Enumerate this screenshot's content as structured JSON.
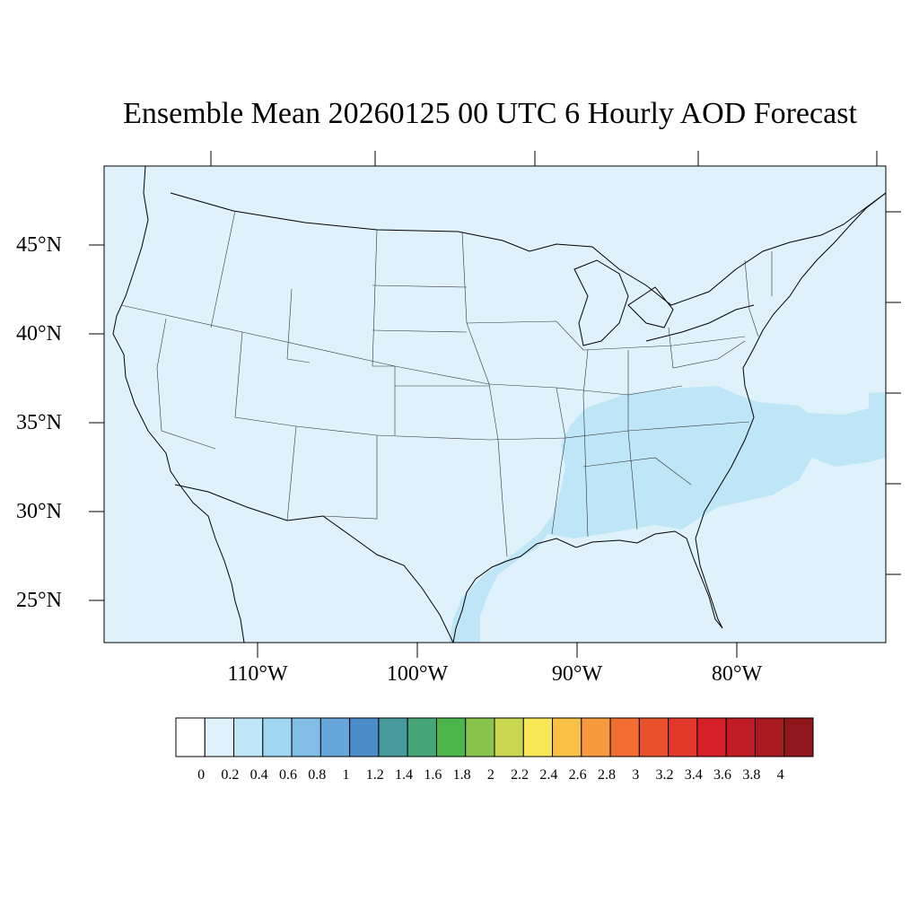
{
  "title": "Ensemble Mean 20260125 00 UTC 6 Hourly AOD Forecast",
  "lat_labels": [
    "45°N",
    "40°N",
    "35°N",
    "30°N",
    "25°N"
  ],
  "lon_labels": [
    "110°W",
    "100°W",
    "90°W",
    "80°W"
  ],
  "colorbar": {
    "levels": [
      "0",
      "0.2",
      "0.4",
      "0.6",
      "0.8",
      "1",
      "1.2",
      "1.4",
      "1.6",
      "1.8",
      "2",
      "2.2",
      "2.4",
      "2.6",
      "2.8",
      "3",
      "3.2",
      "3.4",
      "3.6",
      "3.8",
      "4"
    ],
    "colors": [
      "#ffffff",
      "#dff2fb",
      "#bfe6f7",
      "#9fd6f2",
      "#80bee6",
      "#66a6da",
      "#4a8bc8",
      "#48999b",
      "#46a678",
      "#4bb54b",
      "#88c44c",
      "#c8d650",
      "#f8e755",
      "#f8c044",
      "#f69a3d",
      "#f26d31",
      "#e9512d",
      "#e1382a",
      "#d52028",
      "#c11c26",
      "#a91a20",
      "#8f161b"
    ]
  },
  "field": {
    "background_value": "0–0.2",
    "plume_value": "0.2–0.4",
    "background_color": "#dff2fb",
    "plume_color": "#bfe6f7"
  }
}
